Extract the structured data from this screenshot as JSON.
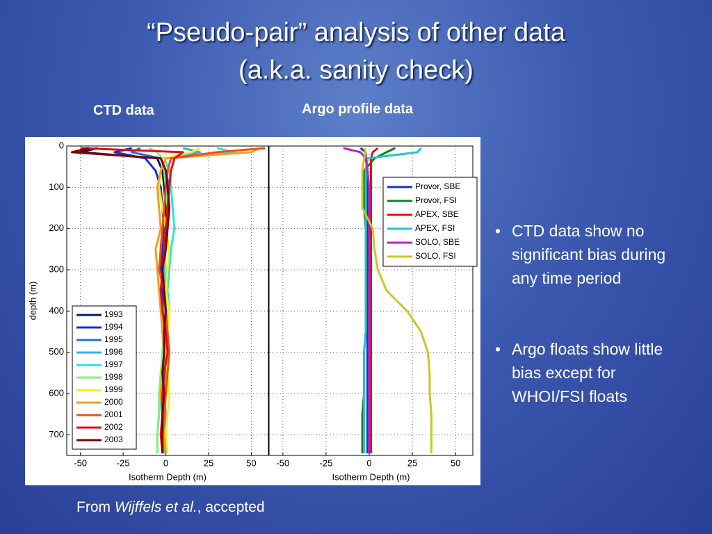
{
  "slide_title": [
    "“Pseudo-pair” analysis of other data",
    "(a.k.a. sanity check)"
  ],
  "bullets": [
    "CTD data show no significant bias during any time period",
    "Argo floats show little bias except for WHOI/FSI floats"
  ],
  "footer": [
    "From ",
    "Wijffels et al.",
    ", accepted"
  ],
  "chart_data": [
    {
      "type": "line",
      "title": "CTD data",
      "xlabel": "Isotherm Depth (m)",
      "ylabel": "depth (m)",
      "xlim": [
        -58,
        60
      ],
      "ylim": [
        0,
        750
      ],
      "invert_y": true,
      "xticks": [
        -50,
        -25,
        0,
        25,
        50
      ],
      "yticks": [
        0,
        100,
        200,
        300,
        400,
        500,
        600,
        700
      ],
      "grid": true,
      "legend": "lower left",
      "y": [
        5,
        15,
        30,
        60,
        100,
        150,
        200,
        250,
        300,
        350,
        400,
        450,
        500,
        550,
        600,
        650,
        700,
        745
      ],
      "series": [
        {
          "name": "1993",
          "color": "#0a1a5c",
          "values": [
            -40,
            -50,
            -5,
            -2,
            -1,
            0,
            -2,
            -3,
            -1,
            -2,
            -1,
            -2,
            -1,
            0,
            -1,
            -2,
            -1,
            -1
          ]
        },
        {
          "name": "1994",
          "color": "#1030d0",
          "values": [
            -20,
            -30,
            -12,
            -6,
            -3,
            -2,
            -1,
            -2,
            -3,
            -2,
            -1,
            0,
            -1,
            -2,
            -1,
            -1,
            -2,
            -1
          ]
        },
        {
          "name": "1995",
          "color": "#2070e8",
          "values": [
            -15,
            -20,
            -3,
            0,
            2,
            1,
            0,
            -1,
            -2,
            -1,
            0,
            -1,
            -2,
            -1,
            0,
            -1,
            -1,
            0
          ]
        },
        {
          "name": "1996",
          "color": "#40a8f0",
          "values": [
            10,
            20,
            -2,
            -1,
            1,
            2,
            1,
            0,
            -1,
            0,
            -1,
            -2,
            -1,
            0,
            -1,
            0,
            -1,
            -1
          ]
        },
        {
          "name": "1997",
          "color": "#30e0e0",
          "values": [
            30,
            40,
            -1,
            2,
            3,
            4,
            5,
            3,
            2,
            1,
            2,
            0,
            -1,
            -2,
            -3,
            -4,
            -5,
            -5
          ]
        },
        {
          "name": "1998",
          "color": "#80f080",
          "values": [
            -10,
            -5,
            -2,
            -1,
            0,
            1,
            0,
            -1,
            0,
            1,
            0,
            -1,
            -2,
            -3,
            -4,
            -4,
            -5,
            -5
          ]
        },
        {
          "name": "1999",
          "color": "#f0f020",
          "values": [
            20,
            15,
            -1,
            -3,
            -4,
            -2,
            0,
            2,
            1,
            0,
            2,
            1,
            0,
            1,
            2,
            1,
            0,
            1
          ]
        },
        {
          "name": "2000",
          "color": "#f0a020",
          "values": [
            55,
            50,
            0,
            -3,
            -5,
            -4,
            -3,
            -6,
            -5,
            -4,
            -3,
            -2,
            -1,
            -2,
            -3,
            -2,
            -1,
            0
          ]
        },
        {
          "name": "2001",
          "color": "#f05010",
          "values": [
            58,
            30,
            3,
            1,
            0,
            -1,
            -2,
            -3,
            -4,
            -1,
            0,
            1,
            2,
            1,
            0,
            -1,
            -2,
            -2
          ]
        },
        {
          "name": "2002",
          "color": "#e01010",
          "values": [
            -50,
            10,
            5,
            3,
            2,
            1,
            0,
            -1,
            -2,
            -3,
            -2,
            0,
            1,
            -1,
            -2,
            -2,
            -3,
            -2
          ]
        },
        {
          "name": "2003",
          "color": "#800000",
          "values": [
            -45,
            -55,
            -3,
            0,
            1,
            2,
            1,
            0,
            -2,
            -1,
            0,
            -1,
            -1,
            -2,
            -1,
            -2,
            -2,
            -2
          ]
        }
      ]
    },
    {
      "type": "line",
      "title": "Argo profile data",
      "xlabel": "Isotherm Depth (m)",
      "xlim": [
        -58,
        60
      ],
      "ylim": [
        0,
        750
      ],
      "invert_y": true,
      "xticks": [
        -50,
        -25,
        0,
        25,
        50
      ],
      "grid": true,
      "legend": "upper right",
      "y": [
        5,
        15,
        30,
        60,
        100,
        150,
        200,
        250,
        300,
        350,
        400,
        450,
        500,
        550,
        600,
        650,
        700,
        745
      ],
      "series": [
        {
          "name": "Provor, SBE",
          "color": "#1030e0",
          "values": [
            -5,
            -2,
            -2,
            -1,
            -1,
            -1,
            -1,
            -1,
            -1,
            -1,
            -1,
            -1,
            -1,
            -1,
            -1,
            -1,
            -1,
            -1
          ]
        },
        {
          "name": "Provor, FSI",
          "color": "#108020",
          "values": [
            15,
            10,
            3,
            -3,
            -3,
            -3,
            -2,
            -2,
            -2,
            -2,
            -2,
            -2,
            -3,
            -3,
            -3,
            -4,
            -4,
            -4
          ]
        },
        {
          "name": "APEX, SBE",
          "color": "#e01010",
          "values": [
            5,
            2,
            1,
            1,
            1,
            1,
            1,
            1,
            1,
            1,
            1,
            1,
            1,
            1,
            1,
            1,
            1,
            1
          ]
        },
        {
          "name": "APEX, FSI",
          "color": "#20c8c8",
          "values": [
            30,
            28,
            -1,
            -2,
            -2,
            -2,
            -2,
            -2,
            -2,
            -2,
            -2,
            -2,
            -3,
            -3,
            -3,
            -3,
            -3,
            -3
          ]
        },
        {
          "name": "SOLO, SBE",
          "color": "#c020c0",
          "values": [
            -15,
            -5,
            -2,
            -1,
            0,
            0,
            0,
            0,
            0,
            0,
            0,
            0,
            0,
            0,
            0,
            0,
            0,
            0
          ]
        },
        {
          "name": "SOLO, FSI",
          "color": "#c8c820",
          "values": [
            -3,
            -2,
            -3,
            -4,
            -4,
            -4,
            2,
            3,
            5,
            10,
            22,
            30,
            34,
            35,
            35,
            36,
            36,
            36
          ]
        }
      ]
    }
  ]
}
